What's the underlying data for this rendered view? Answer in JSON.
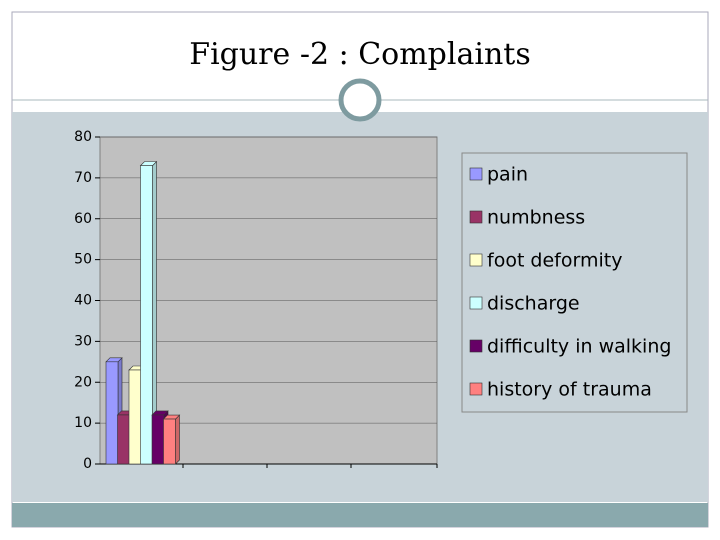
{
  "chart_data": {
    "type": "bar",
    "title": "Figure -2 : Complaints",
    "categories": [
      null
    ],
    "series": [
      {
        "name": "pain",
        "color": "#9999ff",
        "values": [
          25
        ]
      },
      {
        "name": "numbness",
        "color": "#993366",
        "values": [
          12
        ]
      },
      {
        "name": "foot deformity",
        "color": "#ffffcc",
        "values": [
          23
        ]
      },
      {
        "name": "discharge",
        "color": "#ccffff",
        "values": [
          73
        ]
      },
      {
        "name": "difficulty in walking",
        "color": "#660066",
        "values": [
          12
        ]
      },
      {
        "name": "history of trauma",
        "color": "#ff8080",
        "values": [
          11
        ]
      }
    ],
    "ylim": [
      0,
      80
    ],
    "yticks": [
      0,
      10,
      20,
      30,
      40,
      50,
      60,
      70,
      80
    ],
    "grid": true,
    "legend": "right"
  }
}
